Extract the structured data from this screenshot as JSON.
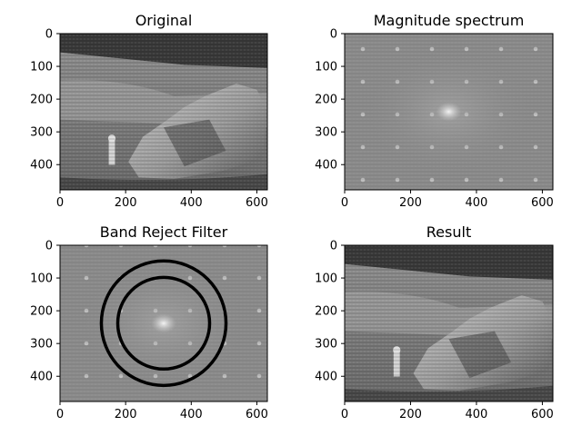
{
  "figure": {
    "background": "#ffffff"
  },
  "chart_data": [
    {
      "type": "image",
      "title": "Original",
      "content": "lunar-surface-photo",
      "xticks": [
        0,
        200,
        400,
        600
      ],
      "yticks": [
        0,
        100,
        200,
        300,
        400
      ],
      "xlim": [
        0,
        632
      ],
      "ylim": [
        0,
        477
      ]
    },
    {
      "type": "image",
      "title": "Magnitude spectrum",
      "content": "fft-magnitude-spectrum",
      "xticks": [
        0,
        200,
        400,
        600
      ],
      "yticks": [
        0,
        100,
        200,
        300,
        400
      ],
      "xlim": [
        0,
        632
      ],
      "ylim": [
        0,
        477
      ]
    },
    {
      "type": "image",
      "title": "Band Reject Filter",
      "content": "fft-spectrum-with-band-reject-ring",
      "ring": {
        "center": [
          316,
          238
        ],
        "inner_radius": 140,
        "outer_radius": 190
      },
      "xticks": [
        0,
        200,
        400,
        600
      ],
      "yticks": [
        0,
        100,
        200,
        300,
        400
      ],
      "xlim": [
        0,
        632
      ],
      "ylim": [
        0,
        477
      ]
    },
    {
      "type": "image",
      "title": "Result",
      "content": "lunar-surface-photo-filtered",
      "xticks": [
        0,
        200,
        400,
        600
      ],
      "yticks": [
        0,
        100,
        200,
        300,
        400
      ],
      "xlim": [
        0,
        632
      ],
      "ylim": [
        0,
        477
      ]
    }
  ]
}
